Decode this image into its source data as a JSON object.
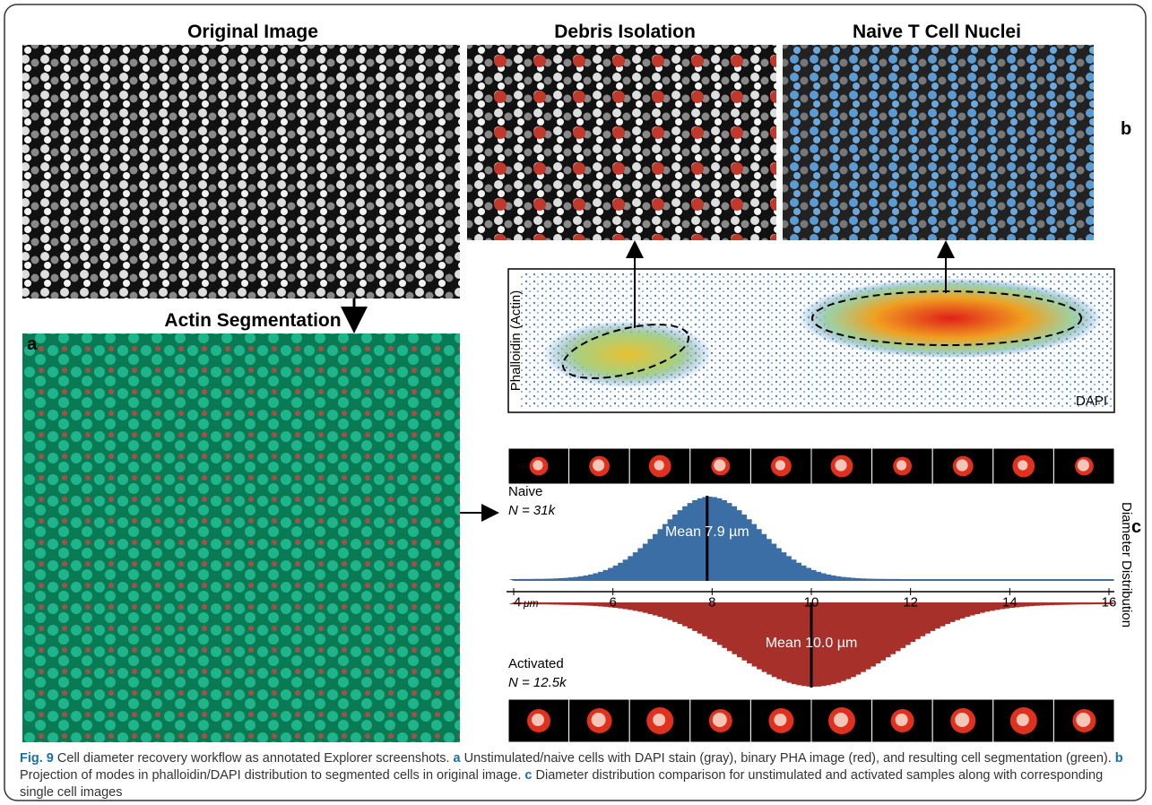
{
  "figure": {
    "panels": {
      "original": "Original Image",
      "debris": "Debris Isolation",
      "naive": "Naive T Cell Nuclei",
      "actin": "Actin Segmentation"
    },
    "letters": {
      "a": "a",
      "b": "b",
      "c": "c"
    },
    "scatter": {
      "y_label": "Phalloidin (Actin)",
      "x_label": "DAPI"
    },
    "histogram": {
      "axis_label": "Diameter Distribution",
      "xlim": [
        4,
        16
      ],
      "xticks": [
        4,
        6,
        8,
        10,
        12,
        14,
        16
      ],
      "unit": "μm",
      "groups": [
        {
          "name": "Naive",
          "n": "N = 31k",
          "mean": 7.9,
          "mean_label": "Mean 7.9 µm"
        },
        {
          "name": "Activated",
          "n": "N = 12.5k",
          "mean": 10.0,
          "mean_label": "Mean 10.0 µm"
        }
      ]
    },
    "caption": {
      "label": "Fig. 9",
      "runs": [
        " Cell diameter recovery workflow as annotated Explorer screenshots. ",
        "a",
        " Unstimulated/naive cells with DAPI stain (gray), binary PHA image (red), and resulting cell segmentation (green). ",
        "b",
        " Projection of modes in phalloidin/DAPI distribution to segmented cells in original image. ",
        "c",
        " Diameter distribution comparison for unstimulated and activated samples along with corresponding single cell images"
      ]
    }
  }
}
